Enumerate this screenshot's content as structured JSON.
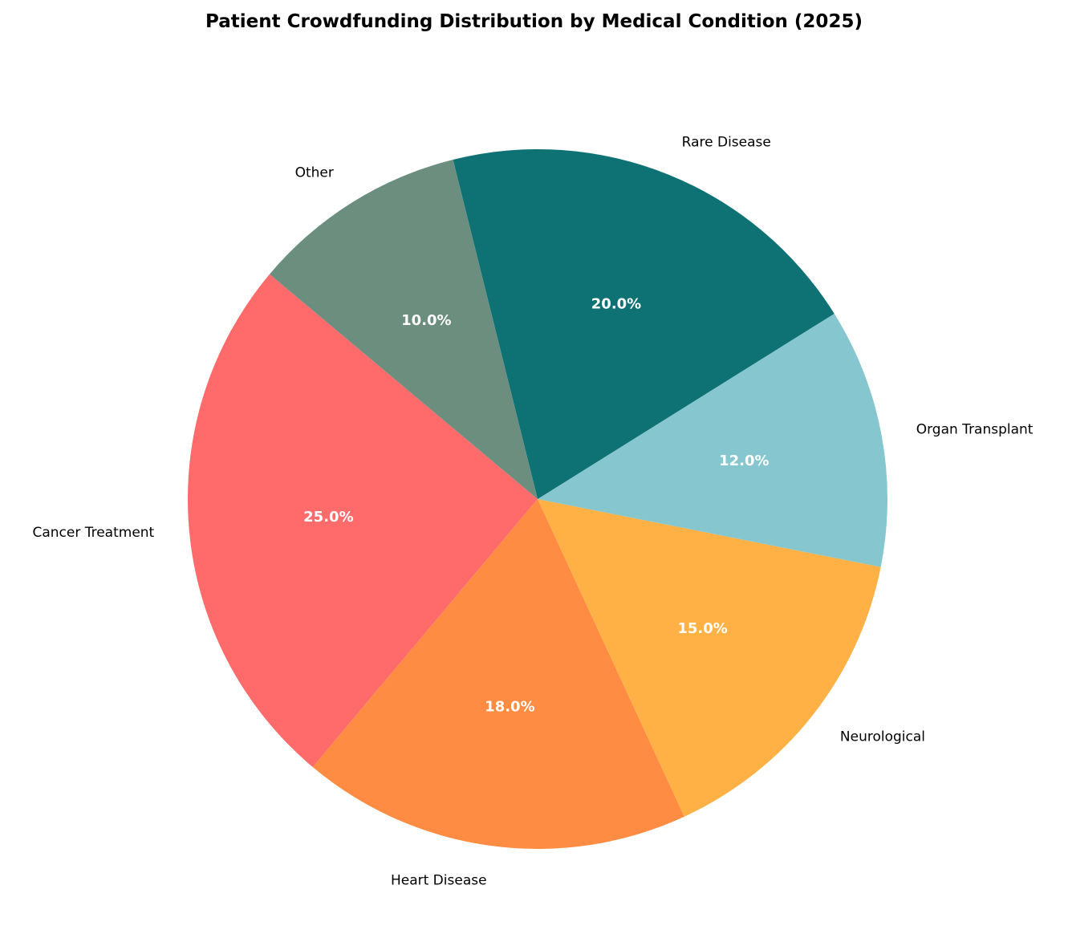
{
  "chart_data": {
    "type": "pie",
    "title": "Patient Crowdfunding Distribution by Medical Condition (2025)",
    "start_angle_deg": 140,
    "direction": "counterclockwise",
    "slices": [
      {
        "label": "Cancer Treatment",
        "value": 25.0,
        "pct_label": "25.0%",
        "color": "#FF6B6B"
      },
      {
        "label": "Heart Disease",
        "value": 18.0,
        "pct_label": "18.0%",
        "color": "#FF8C42"
      },
      {
        "label": "Neurological",
        "value": 15.0,
        "pct_label": "15.0%",
        "color": "#FFB145"
      },
      {
        "label": "Organ Transplant",
        "value": 12.0,
        "pct_label": "12.0%",
        "color": "#86C6CE"
      },
      {
        "label": "Rare Disease",
        "value": 20.0,
        "pct_label": "20.0%",
        "color": "#0E7275"
      },
      {
        "label": "Other",
        "value": 10.0,
        "pct_label": "10.0%",
        "color": "#6B8E7E"
      }
    ]
  }
}
